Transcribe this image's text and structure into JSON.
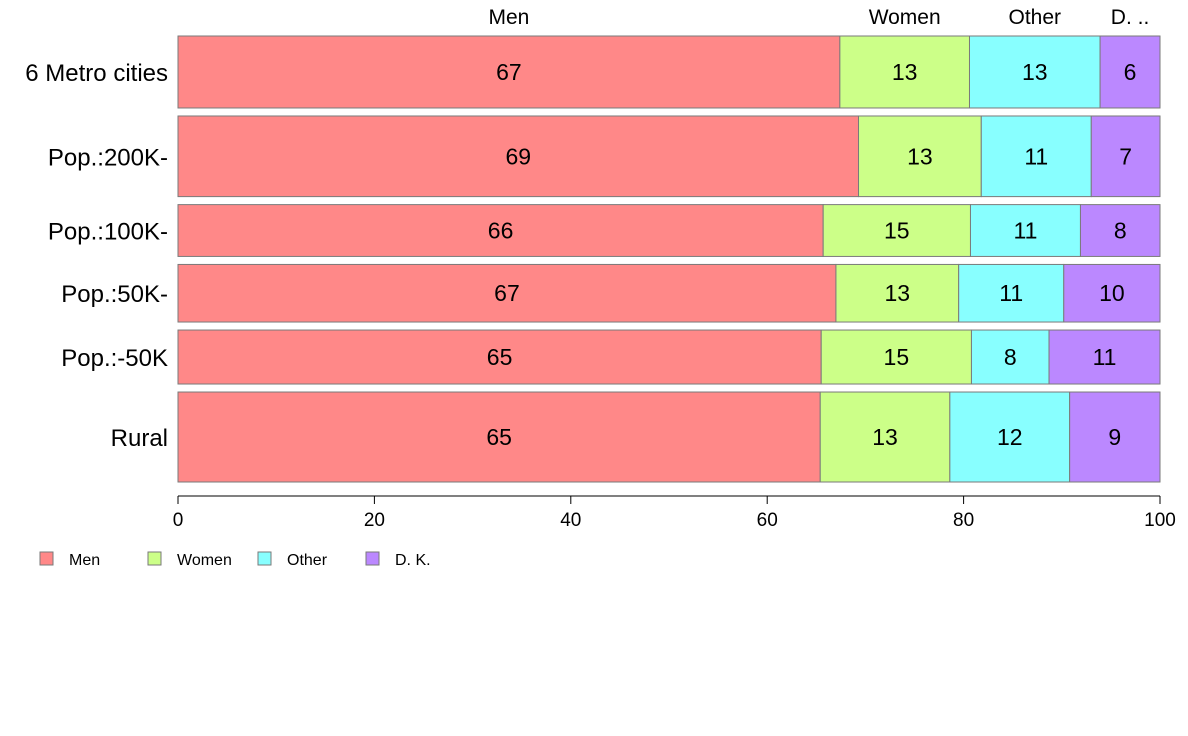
{
  "chart_data": {
    "type": "bar",
    "orientation": "horizontal",
    "stacked": true,
    "categories": [
      "6 Metro cities",
      "Pop.:200K-",
      "Pop.:100K-",
      "Pop.:50K-",
      "Pop.:-50K",
      "Rural"
    ],
    "series": [
      {
        "name": "Men",
        "values": [
          67.4,
          69.3,
          65.7,
          67.0,
          65.5,
          65.4
        ],
        "labels": [
          "67",
          "69",
          "66",
          "67",
          "65",
          "65"
        ],
        "color": "#ff8888"
      },
      {
        "name": "Women",
        "values": [
          13.2,
          12.5,
          15.0,
          12.5,
          15.3,
          13.2
        ],
        "labels": [
          "13",
          "13",
          "15",
          "13",
          "15",
          "13"
        ],
        "color": "#ccff88"
      },
      {
        "name": "Other",
        "values": [
          13.3,
          11.2,
          11.2,
          10.7,
          7.9,
          12.2
        ],
        "labels": [
          "13",
          "11",
          "11",
          "11",
          "8",
          "12"
        ],
        "color": "#88ffff"
      },
      {
        "name": "D. K.",
        "values": [
          6.1,
          7.0,
          8.1,
          9.8,
          11.3,
          9.2
        ],
        "labels": [
          "6",
          "7",
          "8",
          "10",
          "11",
          "9"
        ],
        "color": "#bb88ff"
      }
    ],
    "top_labels": [
      "Men",
      "Women",
      "Other",
      "D. .."
    ],
    "bar_weights": [
      1.0,
      1.12,
      0.72,
      0.8,
      0.75,
      1.25
    ],
    "xlim": [
      0,
      100
    ],
    "xticks": [
      0,
      20,
      40,
      60,
      80,
      100
    ],
    "legend": {
      "position": "bottom-left",
      "entries": [
        "Men",
        "Women",
        "Other",
        "D. K."
      ]
    },
    "grid": false,
    "title": "",
    "xlabel": "",
    "ylabel": ""
  }
}
